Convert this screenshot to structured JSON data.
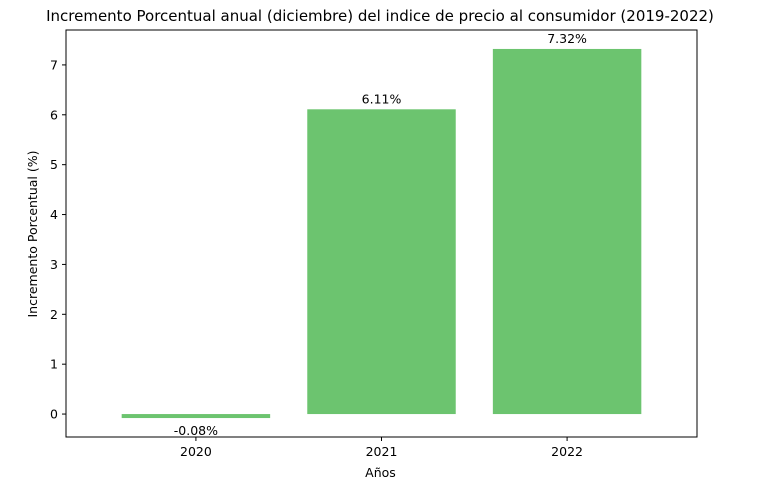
{
  "chart_data": {
    "type": "bar",
    "title": "Incremento Porcentual anual (diciembre) del indice de precio al consumidor (2019-2022)",
    "xlabel": "Años",
    "ylabel": "Incremento Porcentual (%)",
    "categories": [
      "2020",
      "2021",
      "2022"
    ],
    "values": [
      -0.08,
      6.11,
      7.32
    ],
    "data_labels": [
      "-0.08%",
      "6.11%",
      "7.32%"
    ],
    "ylim": [
      -0.46,
      7.7
    ],
    "yticks": [
      0,
      1,
      2,
      3,
      4,
      5,
      6,
      7
    ],
    "grid": false,
    "legend": "none",
    "bar_color": "#6cc46f"
  }
}
